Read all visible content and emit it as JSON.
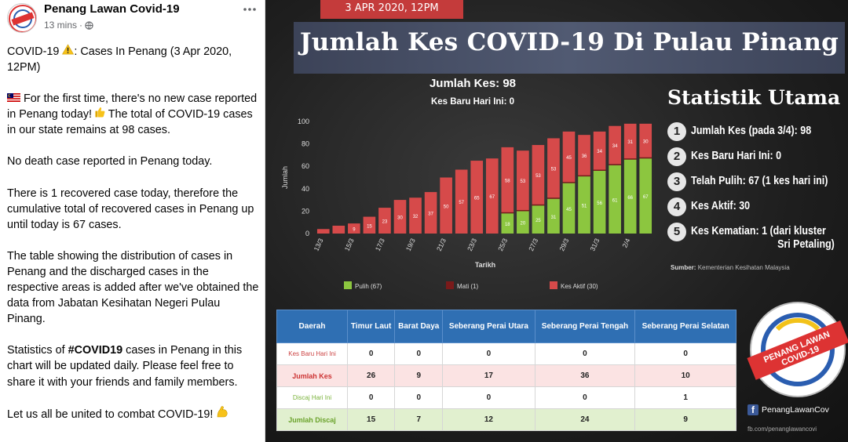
{
  "post": {
    "page_name": "Penang Lawan Covid-19",
    "time": "13 mins",
    "separator": "·",
    "p1_a": "COVID-19",
    "p1_b": ": Cases In Penang (3 Apr 2020, 12PM)",
    "p2_a": "For the first time, there's no new case reported in Penang today!",
    "p2_b": "The total of COVID-19 cases in our state remains at 98 cases.",
    "p3": "No death case reported in Penang today.",
    "p4": "There is 1 recovered case today, therefore the cumulative total of recovered cases in Penang up until today is 67 cases.",
    "p5": "The table showing the distribution of cases in Penang and the discharged cases in the respective areas is added after we've obtained the data from Jabatan Kesihatan Negeri Pulau Pinang.",
    "p6_a": "Statistics of ",
    "p6_hashtag": "#COVID19",
    "p6_b": " cases in Penang in this chart will be updated daily. Please feel free to share it with your friends and family members.",
    "p7": "Let us all be united to combat COVID-19!",
    "icons": [
      "warning-icon",
      "malaysia-flag-icon",
      "thumbs-up-icon",
      "flexed-biceps-icon",
      "globe-icon"
    ]
  },
  "infographic": {
    "date_banner": "3 APR 2020, 12PM",
    "title": "Jumlah Kes COVID-19 Di Pulau Pinang",
    "chart_header_total": "Jumlah Kes: 98",
    "chart_header_new": "Kes Baru Hari Ini: 0",
    "stats_title": "Statistik Utama",
    "stats": [
      {
        "n": "1",
        "text": "Jumlah Kes (pada 3/4): 98"
      },
      {
        "n": "2",
        "text": "Kes Baru Hari Ini: 0"
      },
      {
        "n": "3",
        "text": "Telah Pulih: 67 (1 kes hari ini)"
      },
      {
        "n": "4",
        "text": "Kes Aktif: 30"
      },
      {
        "n": "5",
        "text": "Kes Kematian: 1  (dari kluster",
        "text2": "Sri Petaling)"
      }
    ],
    "source_label": "Sumber:",
    "source_value": "Kementerian Kesihatan Malaysia",
    "table": {
      "headers": [
        "Daerah",
        "Timur Laut",
        "Barat Daya",
        "Seberang Perai Utara",
        "Seberang Perai Tengah",
        "Seberang Perai Selatan"
      ],
      "rows": [
        {
          "label": "Kes Baru Hari Ini",
          "values": [
            "0",
            "0",
            "0",
            "0",
            "0"
          ]
        },
        {
          "label": "Jumlah Kes",
          "values": [
            "26",
            "9",
            "17",
            "36",
            "10"
          ]
        },
        {
          "label": "Discaj Hari Ini",
          "values": [
            "0",
            "0",
            "0",
            "0",
            "1"
          ]
        },
        {
          "label": "Jumlah Discaj",
          "values": [
            "15",
            "7",
            "12",
            "24",
            "9"
          ]
        }
      ]
    },
    "logo_text_top": "PENANG LAWAN",
    "logo_text_bottom": "COVID-19",
    "fb_name": "PenangLawanCov",
    "fb_url": "fb.com/penanglawancovi",
    "colors": {
      "pulih": "#8cc63f",
      "mati": "#7a1a1a",
      "aktif": "#d64a4a",
      "banner": "#c43b3b",
      "table_header": "#2f6fb3"
    }
  },
  "chart_data": {
    "type": "bar",
    "stacked": true,
    "xlabel": "Tarikh",
    "ylabel": "Jumlah",
    "ylim": [
      0,
      100
    ],
    "yticks": [
      0,
      20,
      40,
      60,
      80,
      100
    ],
    "categories": [
      "13/3",
      "14/3",
      "15/3",
      "16/3",
      "17/3",
      "18/3",
      "19/3",
      "20/3",
      "21/3",
      "22/3",
      "23/3",
      "24/3",
      "25/3",
      "26/3",
      "27/3",
      "28/3",
      "29/3",
      "30/3",
      "31/3",
      "1/4",
      "2/4",
      "3/4"
    ],
    "tick_labels": [
      "13/3",
      "15/3",
      "17/3",
      "19/3",
      "21/3",
      "23/3",
      "25/3",
      "27/3",
      "29/3",
      "31/3",
      "2/4"
    ],
    "series": [
      {
        "name": "Pulih (67)",
        "values": [
          0,
          0,
          0,
          0,
          0,
          0,
          0,
          0,
          0,
          0,
          0,
          0,
          18,
          20,
          25,
          31,
          45,
          51,
          56,
          61,
          66,
          67
        ]
      },
      {
        "name": "Mati (1)",
        "values": [
          0,
          0,
          0,
          0,
          0,
          0,
          0,
          0,
          0,
          0,
          0,
          0,
          1,
          1,
          1,
          1,
          1,
          1,
          1,
          1,
          1,
          1
        ]
      },
      {
        "name": "Kes Aktif (30)",
        "values": [
          4,
          7,
          9,
          15,
          23,
          30,
          32,
          37,
          50,
          57,
          65,
          67,
          58,
          53,
          53,
          53,
          45,
          36,
          34,
          34,
          31,
          30
        ]
      }
    ],
    "legend": [
      "Pulih (67)",
      "Mati (1)",
      "Kes Aktif (30)"
    ],
    "legend_position": "bottom"
  }
}
